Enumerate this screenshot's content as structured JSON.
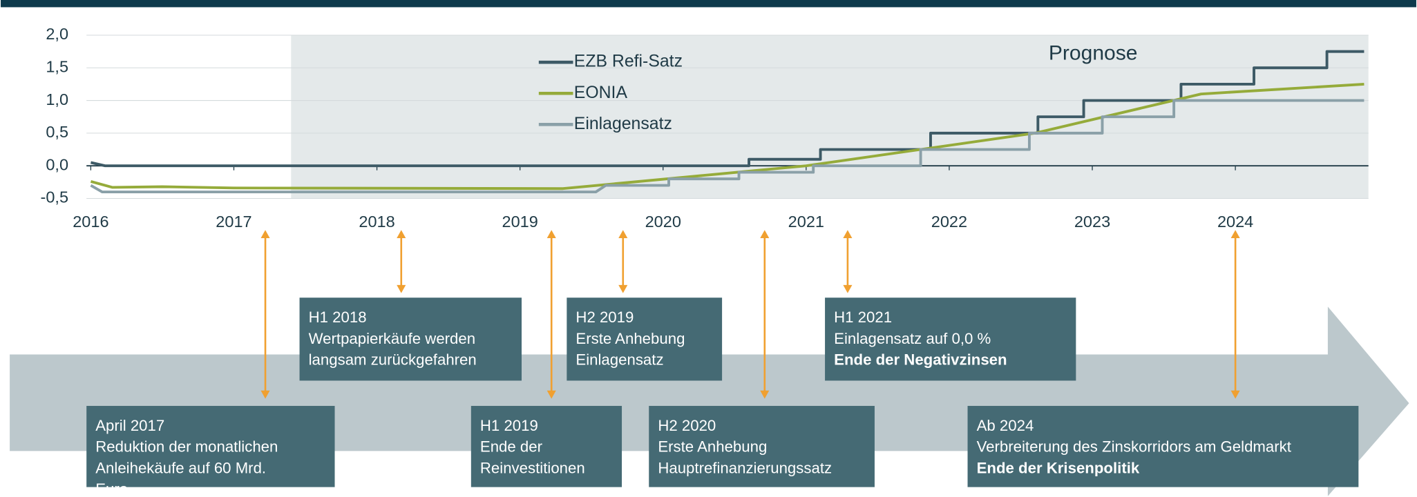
{
  "chart_data": {
    "type": "line",
    "xlim": [
      2015.97,
      2024.93
    ],
    "ylim": [
      -0.5,
      2.0
    ],
    "xticks": [
      2016,
      2017,
      2018,
      2019,
      2020,
      2021,
      2022,
      2023,
      2024
    ],
    "yticks": [
      {
        "value": -0.5,
        "label": "-0,5"
      },
      {
        "value": 0,
        "label": "0,0"
      },
      {
        "value": 0.5,
        "label": "0,5"
      },
      {
        "value": 1.0,
        "label": "1,0"
      },
      {
        "value": 1.5,
        "label": "1,5"
      },
      {
        "value": 2.0,
        "label": "2,0"
      }
    ],
    "grid": true,
    "legend": "top-center",
    "forecast": {
      "label": "Prognose",
      "from": 2017.4,
      "color": "#e4e9ea"
    },
    "series": [
      {
        "name": "EZB Refi-Satz",
        "color": "#3d5a66",
        "x": [
          2016.0,
          2016.1,
          2016.1,
          2020.6,
          2020.6,
          2021.1,
          2021.1,
          2021.87,
          2021.87,
          2022.62,
          2022.62,
          2022.94,
          2022.94,
          2023.62,
          2023.62,
          2024.13,
          2024.13,
          2024.64,
          2024.64,
          2024.9
        ],
        "values": [
          0.05,
          0,
          0,
          0,
          0.1,
          0.1,
          0.25,
          0.25,
          0.5,
          0.5,
          0.75,
          0.75,
          1.0,
          1.0,
          1.25,
          1.25,
          1.5,
          1.5,
          1.75,
          1.75
        ]
      },
      {
        "name": "EONIA",
        "color": "#95ab3a",
        "x": [
          2016.0,
          2016.15,
          2016.5,
          2017.0,
          2019.3,
          2021.0,
          2022.6,
          2023.76,
          2024.9
        ],
        "values": [
          -0.24,
          -0.33,
          -0.32,
          -0.34,
          -0.35,
          0.0,
          0.5,
          1.1,
          1.25
        ]
      },
      {
        "name": "Einlagensatz",
        "color": "#8aa0a8",
        "x": [
          2016.0,
          2016.08,
          2019.53,
          2019.6,
          2020.04,
          2020.04,
          2020.53,
          2020.53,
          2021.05,
          2021.05,
          2021.8,
          2021.8,
          2022.56,
          2022.56,
          2023.07,
          2023.07,
          2023.57,
          2023.57,
          2024.9
        ],
        "values": [
          -0.3,
          -0.4,
          -0.4,
          -0.3,
          -0.3,
          -0.2,
          -0.2,
          -0.1,
          -0.1,
          0,
          0,
          0.25,
          0.25,
          0.5,
          0.5,
          0.75,
          0.75,
          1.0,
          1.0
        ]
      }
    ],
    "annotations": [
      {
        "x": 2017.22,
        "headline": "April  2017",
        "lines": [
          "Reduktion der monatlichen",
          "Anleihekäufe auf 60 Mrd.",
          "Euro"
        ]
      },
      {
        "x": 2018.17,
        "headline": "H1 2018",
        "lines": [
          "Wertpapierkäufe werden",
          "langsam zurückgefahren"
        ]
      },
      {
        "x": 2019.22,
        "headline": "H1 2019",
        "lines": [
          "Ende der",
          "Reinvestitionen"
        ]
      },
      {
        "x": 2019.72,
        "headline": "H2 2019",
        "lines": [
          "Erste Anhebung",
          "Einlagensatz"
        ]
      },
      {
        "x": 2020.71,
        "headline": "H2 2020",
        "lines": [
          "Erste Anhebung",
          "Hauptrefinanzierungssatz"
        ]
      },
      {
        "x": 2021.29,
        "headline": "H1 2021",
        "lines": [
          "Einlagensatz auf 0,0 %"
        ],
        "highlight": "Ende der Negativzinsen"
      },
      {
        "x": 2024.0,
        "headline": "Ab 2024",
        "lines": [
          "Verbreiterung des Zinskorridors am Geldmarkt"
        ],
        "highlight": "Ende der Krisenpolitik"
      }
    ]
  }
}
